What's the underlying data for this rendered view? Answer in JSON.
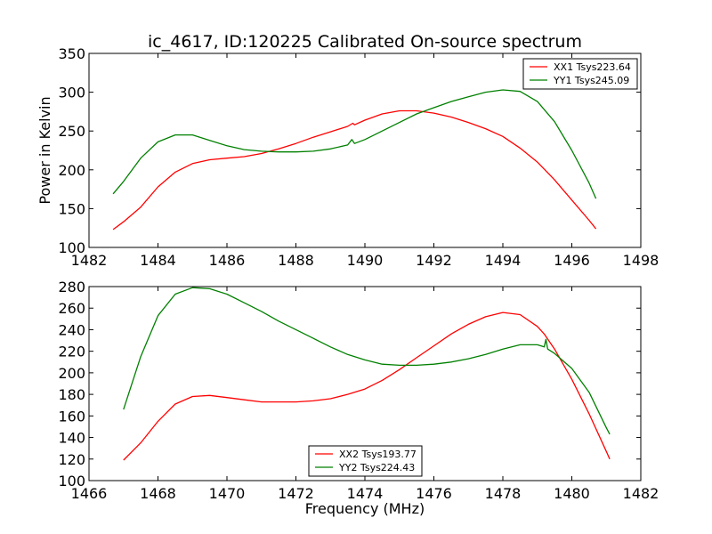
{
  "figure": {
    "title": "ic_4617, ID:120225 Calibrated On-source spectrum",
    "xlabel": "Frequency (MHz)",
    "ylabel": "Power in Kelvin"
  },
  "chart_data": [
    {
      "type": "line",
      "title": "ic_4617, ID:120225 Calibrated On-source spectrum",
      "xlabel": "",
      "ylabel": "Power in Kelvin",
      "xlim": [
        1482,
        1498
      ],
      "ylim": [
        100,
        350
      ],
      "xticks": [
        1482,
        1484,
        1486,
        1488,
        1490,
        1492,
        1494,
        1496,
        1498
      ],
      "yticks": [
        100,
        150,
        200,
        250,
        300,
        350
      ],
      "grid": false,
      "legend_position": "top-right",
      "series": [
        {
          "name": "XX1 Tsys223.64",
          "color": "#ff0000",
          "points": [
            [
              1482.7,
              123
            ],
            [
              1483.0,
              133
            ],
            [
              1483.5,
              152
            ],
            [
              1484.0,
              178
            ],
            [
              1484.5,
              197
            ],
            [
              1485.0,
              208
            ],
            [
              1485.5,
              213
            ],
            [
              1486.0,
              215
            ],
            [
              1486.5,
              217
            ],
            [
              1487.0,
              221
            ],
            [
              1487.5,
              227
            ],
            [
              1488.0,
              234
            ],
            [
              1488.5,
              242
            ],
            [
              1489.0,
              249
            ],
            [
              1489.5,
              256
            ],
            [
              1489.65,
              260
            ],
            [
              1489.7,
              258
            ],
            [
              1490.0,
              264
            ],
            [
              1490.5,
              272
            ],
            [
              1491.0,
              276
            ],
            [
              1491.5,
              276
            ],
            [
              1492.0,
              273
            ],
            [
              1492.5,
              268
            ],
            [
              1493.0,
              261
            ],
            [
              1493.5,
              253
            ],
            [
              1494.0,
              243
            ],
            [
              1494.5,
              228
            ],
            [
              1495.0,
              210
            ],
            [
              1495.5,
              187
            ],
            [
              1496.0,
              161
            ],
            [
              1496.5,
              135
            ],
            [
              1496.7,
              124
            ]
          ]
        },
        {
          "name": "YY1 Tsys245.09",
          "color": "#008000",
          "points": [
            [
              1482.7,
              169
            ],
            [
              1483.0,
              185
            ],
            [
              1483.5,
              215
            ],
            [
              1484.0,
              236
            ],
            [
              1484.5,
              245
            ],
            [
              1485.0,
              245
            ],
            [
              1485.5,
              238
            ],
            [
              1486.0,
              231
            ],
            [
              1486.5,
              226
            ],
            [
              1487.0,
              224
            ],
            [
              1487.5,
              223
            ],
            [
              1488.0,
              223
            ],
            [
              1488.5,
              224
            ],
            [
              1489.0,
              227
            ],
            [
              1489.5,
              232
            ],
            [
              1489.62,
              239
            ],
            [
              1489.7,
              234
            ],
            [
              1490.0,
              239
            ],
            [
              1490.5,
              250
            ],
            [
              1491.0,
              261
            ],
            [
              1491.5,
              272
            ],
            [
              1492.0,
              280
            ],
            [
              1492.5,
              288
            ],
            [
              1493.0,
              294
            ],
            [
              1493.5,
              300
            ],
            [
              1494.0,
              303
            ],
            [
              1494.5,
              301
            ],
            [
              1495.0,
              288
            ],
            [
              1495.5,
              262
            ],
            [
              1496.0,
              225
            ],
            [
              1496.5,
              183
            ],
            [
              1496.7,
              163
            ]
          ]
        }
      ]
    },
    {
      "type": "line",
      "title": "",
      "xlabel": "Frequency (MHz)",
      "ylabel": "",
      "xlim": [
        1466,
        1482
      ],
      "ylim": [
        100,
        280
      ],
      "xticks": [
        1466,
        1468,
        1470,
        1472,
        1474,
        1476,
        1478,
        1480,
        1482
      ],
      "yticks": [
        100,
        120,
        140,
        160,
        180,
        200,
        220,
        240,
        260,
        280
      ],
      "grid": false,
      "legend_position": "bottom-center",
      "series": [
        {
          "name": "XX2 Tsys193.77",
          "color": "#ff0000",
          "points": [
            [
              1467.0,
              119
            ],
            [
              1467.5,
              135
            ],
            [
              1468.0,
              155
            ],
            [
              1468.5,
              171
            ],
            [
              1469.0,
              178
            ],
            [
              1469.5,
              179
            ],
            [
              1470.0,
              177
            ],
            [
              1470.5,
              175
            ],
            [
              1471.0,
              173
            ],
            [
              1471.5,
              173
            ],
            [
              1472.0,
              173
            ],
            [
              1472.5,
              174
            ],
            [
              1473.0,
              176
            ],
            [
              1473.5,
              180
            ],
            [
              1474.0,
              185
            ],
            [
              1474.5,
              193
            ],
            [
              1475.0,
              203
            ],
            [
              1475.5,
              214
            ],
            [
              1476.0,
              225
            ],
            [
              1476.5,
              236
            ],
            [
              1477.0,
              245
            ],
            [
              1477.5,
              252
            ],
            [
              1478.0,
              256
            ],
            [
              1478.5,
              254
            ],
            [
              1479.0,
              243
            ],
            [
              1479.2,
              236
            ],
            [
              1479.5,
              222
            ],
            [
              1480.0,
              194
            ],
            [
              1480.5,
              162
            ],
            [
              1481.0,
              127
            ],
            [
              1481.1,
              120
            ]
          ]
        },
        {
          "name": "YY2 Tsys224.43",
          "color": "#008000",
          "points": [
            [
              1467.0,
              166
            ],
            [
              1467.5,
              215
            ],
            [
              1468.0,
              253
            ],
            [
              1468.5,
              273
            ],
            [
              1469.0,
              279
            ],
            [
              1469.5,
              278
            ],
            [
              1470.0,
              273
            ],
            [
              1470.5,
              265
            ],
            [
              1471.0,
              257
            ],
            [
              1471.5,
              248
            ],
            [
              1472.0,
              240
            ],
            [
              1472.5,
              232
            ],
            [
              1473.0,
              224
            ],
            [
              1473.5,
              217
            ],
            [
              1474.0,
              212
            ],
            [
              1474.5,
              208
            ],
            [
              1475.0,
              207
            ],
            [
              1475.5,
              207
            ],
            [
              1476.0,
              208
            ],
            [
              1476.5,
              210
            ],
            [
              1477.0,
              213
            ],
            [
              1477.5,
              217
            ],
            [
              1478.0,
              222
            ],
            [
              1478.5,
              226
            ],
            [
              1479.0,
              226
            ],
            [
              1479.2,
              224
            ],
            [
              1479.25,
              231
            ],
            [
              1479.3,
              222
            ],
            [
              1479.5,
              218
            ],
            [
              1480.0,
              204
            ],
            [
              1480.5,
              182
            ],
            [
              1481.0,
              149
            ],
            [
              1481.1,
              143
            ]
          ]
        }
      ]
    }
  ]
}
